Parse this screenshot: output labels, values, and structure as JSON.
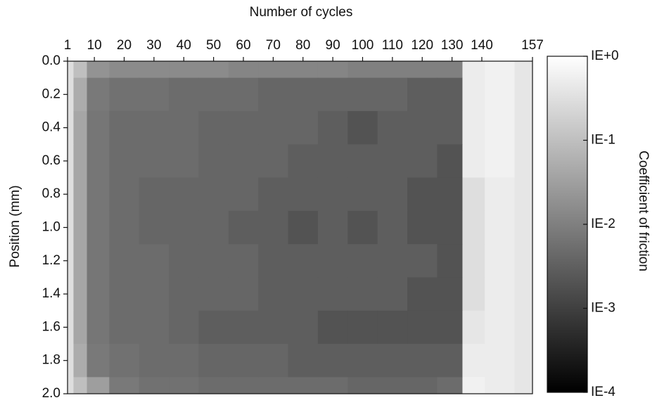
{
  "chart_data": {
    "type": "heatmap",
    "x_label": "Number of cycles",
    "y_label": "Position (mm)",
    "colorbar_label": "Coefficient of friction",
    "x": [
      1,
      5,
      10,
      20,
      30,
      40,
      50,
      60,
      70,
      80,
      90,
      100,
      110,
      120,
      130,
      137,
      145,
      157
    ],
    "y": [
      0,
      0.2,
      0.4,
      0.6,
      0.8,
      1,
      1.2,
      1.4,
      1.6,
      1.8,
      2
    ],
    "z": [
      [
        0.3,
        0.1,
        0.02,
        0.015,
        0.015,
        0.015,
        0.015,
        0.012,
        0.012,
        0.012,
        0.012,
        0.01,
        0.01,
        0.01,
        0.01,
        0.5,
        0.6,
        0.4
      ],
      [
        0.3,
        0.05,
        0.008,
        0.006,
        0.006,
        0.005,
        0.005,
        0.005,
        0.004,
        0.004,
        0.004,
        0.004,
        0.004,
        0.003,
        0.003,
        0.5,
        0.6,
        0.4
      ],
      [
        0.3,
        0.04,
        0.007,
        0.005,
        0.005,
        0.005,
        0.004,
        0.004,
        0.004,
        0.004,
        0.003,
        0.002,
        0.003,
        0.003,
        0.003,
        0.5,
        0.6,
        0.4
      ],
      [
        0.3,
        0.04,
        0.007,
        0.005,
        0.005,
        0.005,
        0.004,
        0.004,
        0.004,
        0.003,
        0.003,
        0.003,
        0.003,
        0.003,
        0.002,
        0.5,
        0.6,
        0.4
      ],
      [
        0.3,
        0.04,
        0.007,
        0.005,
        0.004,
        0.004,
        0.004,
        0.004,
        0.003,
        0.003,
        0.003,
        0.003,
        0.003,
        0.002,
        0.002,
        0.3,
        0.5,
        0.4
      ],
      [
        0.3,
        0.04,
        0.007,
        0.005,
        0.004,
        0.004,
        0.004,
        0.003,
        0.003,
        0.002,
        0.003,
        0.002,
        0.003,
        0.002,
        0.002,
        0.3,
        0.5,
        0.4
      ],
      [
        0.3,
        0.04,
        0.007,
        0.005,
        0.005,
        0.004,
        0.004,
        0.004,
        0.003,
        0.003,
        0.003,
        0.003,
        0.003,
        0.003,
        0.002,
        0.3,
        0.5,
        0.4
      ],
      [
        0.3,
        0.04,
        0.007,
        0.005,
        0.005,
        0.004,
        0.004,
        0.004,
        0.003,
        0.003,
        0.003,
        0.003,
        0.003,
        0.002,
        0.002,
        0.3,
        0.5,
        0.4
      ],
      [
        0.3,
        0.04,
        0.007,
        0.005,
        0.005,
        0.004,
        0.003,
        0.003,
        0.003,
        0.003,
        0.002,
        0.002,
        0.002,
        0.002,
        0.002,
        0.4,
        0.5,
        0.4
      ],
      [
        0.3,
        0.05,
        0.008,
        0.006,
        0.005,
        0.005,
        0.004,
        0.004,
        0.004,
        0.003,
        0.003,
        0.003,
        0.003,
        0.003,
        0.003,
        0.5,
        0.5,
        0.4
      ],
      [
        0.3,
        0.1,
        0.03,
        0.008,
        0.006,
        0.006,
        0.005,
        0.005,
        0.005,
        0.005,
        0.005,
        0.004,
        0.004,
        0.004,
        0.005,
        0.6,
        0.5,
        0.4
      ]
    ],
    "xlim": [
      1,
      157
    ],
    "xticks": [
      1,
      10,
      20,
      30,
      40,
      50,
      60,
      70,
      80,
      90,
      100,
      110,
      120,
      130,
      140,
      157
    ],
    "ylim": [
      0,
      2
    ],
    "y_inverted": true,
    "yticks": [
      {
        "value": 0,
        "label": "0.0"
      },
      0.2,
      0.4,
      0.6,
      0.8,
      {
        "value": 1,
        "label": "1.0"
      },
      1.2,
      1.4,
      1.6,
      1.8,
      {
        "value": 2,
        "label": "2.0"
      }
    ],
    "clim": [
      0.0001,
      1
    ],
    "color_scale": "log",
    "colormap": [
      "#000000",
      "#ffffff"
    ],
    "cticks": [
      {
        "value": 1,
        "label": "IE+0"
      },
      {
        "value": 0.1,
        "label": "IE-1"
      },
      {
        "value": 0.01,
        "label": "IE-2"
      },
      {
        "value": 0.001,
        "label": "IE-3"
      },
      {
        "value": 0.0001,
        "label": "IE-4"
      }
    ]
  }
}
